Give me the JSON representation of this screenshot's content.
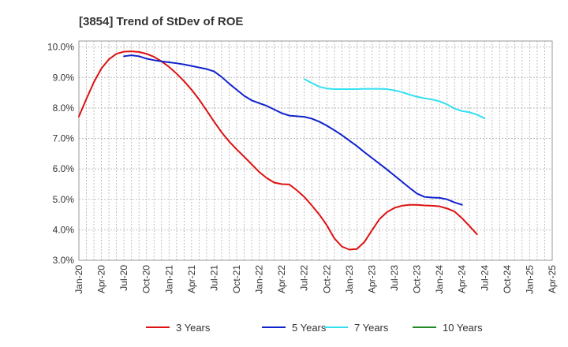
{
  "chart_data": {
    "type": "line",
    "title": "[3854]  Trend of StDev of ROE",
    "xlabel": "",
    "ylabel": "",
    "x_ticks": [
      "Jan-20",
      "Apr-20",
      "Jul-20",
      "Oct-20",
      "Jan-21",
      "Apr-21",
      "Jul-21",
      "Oct-21",
      "Jan-22",
      "Apr-22",
      "Jul-22",
      "Oct-22",
      "Jan-23",
      "Apr-23",
      "Jul-23",
      "Oct-23",
      "Jan-24",
      "Apr-24",
      "Jul-24",
      "Oct-24",
      "Jan-25",
      "Apr-25"
    ],
    "y_ticks": [
      "3.0%",
      "4.0%",
      "5.0%",
      "6.0%",
      "7.0%",
      "8.0%",
      "9.0%",
      "10.0%"
    ],
    "ylim": [
      3.0,
      10.2
    ],
    "grid": true,
    "legend_position": "bottom",
    "series": [
      {
        "name": "3 Years",
        "color": "#dd1111",
        "x_start": "Jan-20",
        "values": [
          7.72,
          8.3,
          8.85,
          9.3,
          9.6,
          9.78,
          9.85,
          9.86,
          9.84,
          9.78,
          9.68,
          9.53,
          9.35,
          9.13,
          8.88,
          8.6,
          8.28,
          7.92,
          7.55,
          7.2,
          6.9,
          6.64,
          6.4,
          6.15,
          5.9,
          5.7,
          5.55,
          5.5,
          5.49,
          5.3,
          5.08,
          4.8,
          4.5,
          4.15,
          3.72,
          3.45,
          3.35,
          3.37,
          3.6,
          3.98,
          4.35,
          4.58,
          4.72,
          4.79,
          4.82,
          4.82,
          4.8,
          4.79,
          4.77,
          4.7,
          4.6,
          4.38,
          4.12,
          3.85
        ]
      },
      {
        "name": "5 Years",
        "color": "#1122cc",
        "x_start": "Jul-20",
        "values": [
          9.7,
          9.73,
          9.7,
          9.62,
          9.57,
          9.53,
          9.5,
          9.47,
          9.43,
          9.38,
          9.33,
          9.28,
          9.2,
          9.02,
          8.8,
          8.6,
          8.4,
          8.25,
          8.16,
          8.07,
          7.95,
          7.83,
          7.75,
          7.73,
          7.71,
          7.65,
          7.55,
          7.42,
          7.27,
          7.11,
          6.93,
          6.75,
          6.55,
          6.36,
          6.17,
          5.98,
          5.78,
          5.58,
          5.38,
          5.19,
          5.08,
          5.06,
          5.05,
          5.0,
          4.9,
          4.82
        ]
      },
      {
        "name": "7 Years",
        "color": "#33e0f0",
        "x_start": "Jul-22",
        "values": [
          8.95,
          8.82,
          8.7,
          8.64,
          8.62,
          8.62,
          8.62,
          8.62,
          8.63,
          8.63,
          8.63,
          8.62,
          8.58,
          8.52,
          8.44,
          8.37,
          8.32,
          8.28,
          8.22,
          8.12,
          7.98,
          7.9,
          7.86,
          7.78,
          7.66
        ]
      },
      {
        "name": "10 Years",
        "color": "#228822",
        "x_start": "Jan-20",
        "values": []
      }
    ]
  }
}
